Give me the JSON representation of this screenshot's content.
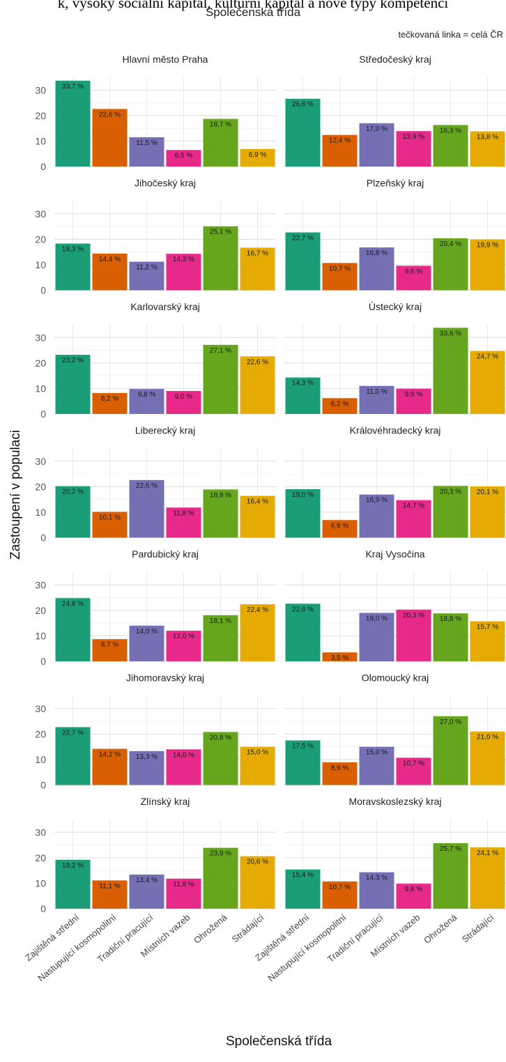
{
  "header": {
    "cut_title": "k, vysoký sociální kapitál, kulturní kapitál a nové typy kompetencí",
    "subtitle": "Společenská třída",
    "note": "tečkovaná linka = celá ČR"
  },
  "chart_data": {
    "type": "bar",
    "xlabel": "Společenská třída",
    "ylabel": "Zastoupení v populaci",
    "ylim": [
      0,
      35
    ],
    "yticks": [
      0,
      10,
      20,
      30
    ],
    "categories": [
      "Zajištěná střední",
      "Nastupující kosmopolitní",
      "Tradiční pracující",
      "Místních vazeb",
      "Ohrožená",
      "Strádající"
    ],
    "colors": [
      "#1b9e77",
      "#d95f02",
      "#7570b3",
      "#e7298a",
      "#66a61e",
      "#e6ab02"
    ],
    "label_suffix": " %",
    "facets": [
      {
        "name": "Hlavní město Praha",
        "values": [
          33.7,
          22.6,
          11.5,
          6.5,
          18.7,
          6.9
        ]
      },
      {
        "name": "Středočeský kraj",
        "values": [
          26.6,
          12.4,
          17.0,
          13.9,
          16.3,
          13.8
        ]
      },
      {
        "name": "Jihočeský kraj",
        "values": [
          18.3,
          14.4,
          11.2,
          14.3,
          25.1,
          16.7
        ]
      },
      {
        "name": "Plzeňský kraj",
        "values": [
          22.7,
          10.7,
          16.8,
          9.6,
          20.4,
          19.9
        ]
      },
      {
        "name": "Karlovarský kraj",
        "values": [
          23.2,
          8.2,
          9.8,
          9.0,
          27.1,
          22.6
        ]
      },
      {
        "name": "Ústecký kraj",
        "values": [
          14.3,
          6.2,
          11.0,
          9.9,
          33.8,
          24.7
        ]
      },
      {
        "name": "Liberecký kraj",
        "values": [
          20.2,
          10.1,
          22.6,
          11.8,
          18.9,
          16.4
        ]
      },
      {
        "name": "Královéhradecký kraj",
        "values": [
          19.0,
          6.9,
          16.9,
          14.7,
          20.3,
          20.1
        ]
      },
      {
        "name": "Pardubický kraj",
        "values": [
          24.8,
          8.7,
          14.0,
          12.0,
          18.1,
          22.4
        ]
      },
      {
        "name": "Kraj Vysočina",
        "values": [
          22.6,
          3.5,
          19.0,
          20.3,
          18.8,
          15.7
        ]
      },
      {
        "name": "Jihomoravský kraj",
        "values": [
          22.7,
          14.2,
          13.3,
          14.0,
          20.8,
          15.0
        ]
      },
      {
        "name": "Olomoucký kraj",
        "values": [
          17.5,
          8.9,
          15.0,
          10.7,
          27.0,
          21.0
        ]
      },
      {
        "name": "Zlínský kraj",
        "values": [
          19.2,
          11.1,
          13.4,
          11.8,
          23.9,
          20.6
        ]
      },
      {
        "name": "Moravskoslezský kraj",
        "values": [
          15.4,
          10.7,
          14.3,
          9.8,
          25.7,
          24.1
        ]
      }
    ]
  }
}
